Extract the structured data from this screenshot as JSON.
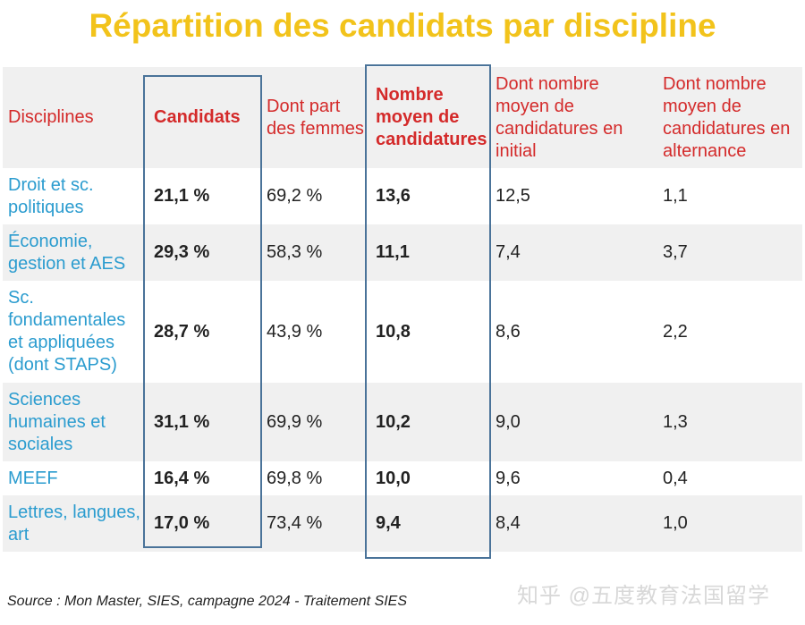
{
  "title": "Répartition des candidats par discipline",
  "table": {
    "headers": [
      "Disciplines",
      "Candidats",
      "Dont part des femmes",
      "Nombre moyen de candidatures",
      "Dont nombre moyen de candidatures en initial",
      "Dont nombre moyen de candidatures en alternance"
    ],
    "rows": [
      [
        "Droit et sc. politiques",
        "21,1 %",
        "69,2 %",
        "13,6",
        "12,5",
        "1,1"
      ],
      [
        "Économie, gestion et AES",
        "29,3 %",
        "58,3 %",
        "11,1",
        "7,4",
        "3,7"
      ],
      [
        "Sc. fondamentales et appliquées (dont STAPS)",
        "28,7 %",
        "43,9 %",
        "10,8",
        "8,6",
        "2,2"
      ],
      [
        "Sciences humaines et sociales",
        "31,1 %",
        "69,9 %",
        "10,2",
        "9,0",
        "1,3"
      ],
      [
        "MEEF",
        "16,4 %",
        "69,8 %",
        "10,0",
        "9,6",
        "0,4"
      ],
      [
        "Lettres, langues, art",
        "17,0 %",
        "73,4 %",
        "9,4",
        "8,4",
        "1,0"
      ]
    ]
  },
  "source": "Source : Mon Master, SIES, campagne 2024 - Traitement SIES",
  "watermark": "知乎 @五度教育法国留学",
  "colors": {
    "title": "#f2c31b",
    "header": "#d42a2a",
    "discipline": "#2b9ccf",
    "highlight_box": "#4a7399",
    "row_alt": "#f0f0f0"
  }
}
